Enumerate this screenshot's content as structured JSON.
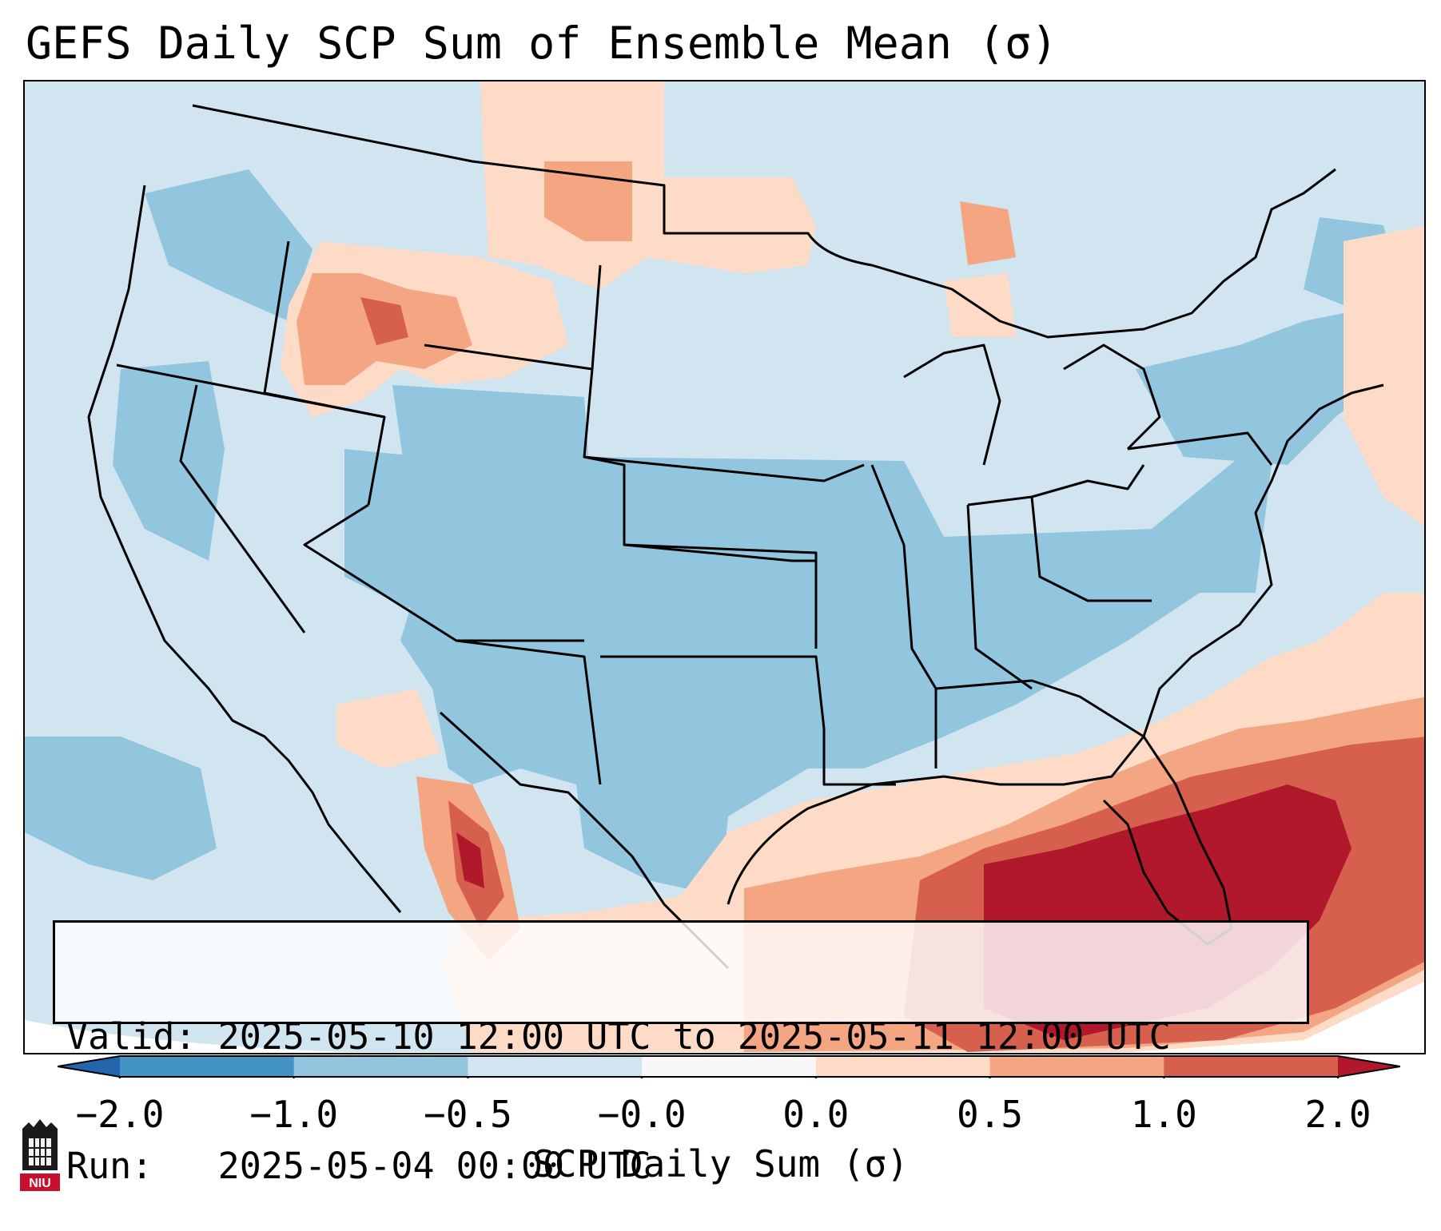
{
  "title": "GEFS Daily SCP Sum of Ensemble Mean (σ)",
  "info": {
    "valid_label": "Valid:",
    "valid_value": "2025-05-10 12:00 UTC to 2025-05-11 12:00 UTC",
    "run_label": "Run:",
    "run_value": "2025-05-04 00:00 UTC"
  },
  "colorbar": {
    "label": "SCP Daily Sum (σ)",
    "ticks": [
      "−2.0",
      "−1.0",
      "−0.5",
      "−0.0",
      "0.0",
      "0.5",
      "1.0",
      "2.0"
    ],
    "bins": [
      {
        "from": -2.0,
        "to": -1.0,
        "color": "#4393c3"
      },
      {
        "from": -1.0,
        "to": -0.5,
        "color": "#92c5de"
      },
      {
        "from": -0.5,
        "to": 0.0,
        "color": "#d1e5f0"
      },
      {
        "from": 0.0,
        "to": 0.0,
        "color": "#f7f7f7"
      },
      {
        "from": 0.0,
        "to": 0.5,
        "color": "#fddbc7"
      },
      {
        "from": 0.5,
        "to": 1.0,
        "color": "#f4a582"
      },
      {
        "from": 1.0,
        "to": 2.0,
        "color": "#d6604d"
      }
    ],
    "under_color": "#2166ac",
    "over_color": "#b2182b"
  },
  "map": {
    "projection": "conus-lambert",
    "field_background": "#d1e5f0",
    "colors": {
      "strong_neg": "#92c5de",
      "mild_pos": "#fddbc7",
      "pos": "#f4a582",
      "strong_pos": "#d6604d",
      "max_pos": "#b2182b",
      "neutral": "#f7f7f7"
    }
  },
  "logo": {
    "text": "NIU",
    "icon": "niu-logo-icon"
  }
}
